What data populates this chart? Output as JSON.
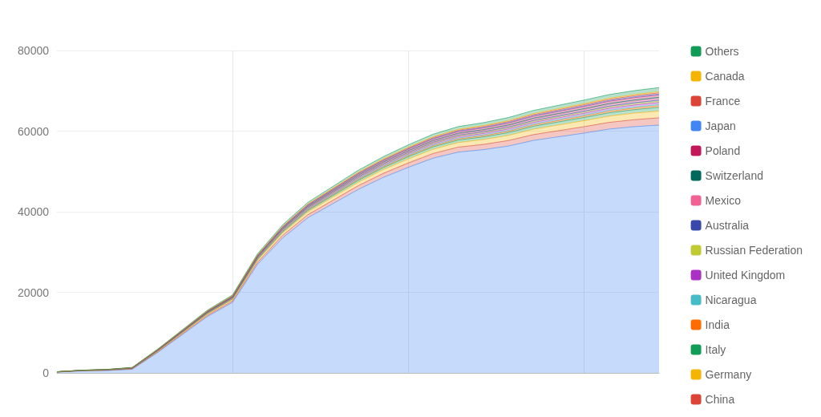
{
  "chart_data": {
    "type": "area",
    "stacked": true,
    "categories": [
      null,
      null,
      null,
      null,
      null,
      null,
      null,
      null,
      null,
      null,
      null,
      null,
      null,
      null,
      null,
      null,
      null,
      null,
      null,
      null,
      null,
      null,
      null,
      null,
      null
    ],
    "ylim": [
      0,
      80000
    ],
    "yticks": [
      0,
      20000,
      40000,
      60000,
      80000
    ],
    "grid": true,
    "legend": "right",
    "tick_labels": "y",
    "series": [
      {
        "color": "#4285f4",
        "values": [
          200,
          500,
          600,
          900,
          5000,
          9500,
          14000,
          17500,
          27000,
          33500,
          38500,
          42000,
          45500,
          48500,
          51000,
          53300,
          54800,
          55400,
          56300,
          57700,
          58600,
          59500,
          60500,
          61100,
          61500
        ]
      },
      {
        "name": "China",
        "color": "#db4437",
        "values": [
          18,
          36,
          54,
          90,
          162,
          234,
          306,
          360,
          504,
          630,
          738,
          828,
          918,
          990,
          1080,
          1152,
          1224,
          1296,
          1368,
          1440,
          1512,
          1584,
          1656,
          1728,
          1800
        ]
      },
      {
        "name": "Germany",
        "color": "#f4b400",
        "values": [
          17,
          34,
          51,
          85,
          153,
          221,
          289,
          340,
          476,
          595,
          697,
          782,
          867,
          935,
          1020,
          1088,
          1156,
          1224,
          1292,
          1360,
          1428,
          1496,
          1564,
          1632,
          1700
        ]
      },
      {
        "name": "Italy",
        "color": "#0f9d58",
        "values": [
          9,
          18,
          27,
          45,
          81,
          117,
          153,
          180,
          252,
          315,
          369,
          414,
          459,
          495,
          540,
          576,
          612,
          648,
          684,
          720,
          756,
          792,
          828,
          864,
          900
        ]
      },
      {
        "name": "India",
        "color": "#ff6d00",
        "values": [
          4,
          8,
          12,
          20,
          36,
          52,
          68,
          80,
          112,
          140,
          164,
          184,
          204,
          220,
          240,
          256,
          272,
          288,
          304,
          320,
          336,
          352,
          368,
          384,
          400
        ]
      },
      {
        "name": "Nicaragua",
        "color": "#46bdc6",
        "values": [
          3,
          6,
          9,
          15,
          27,
          39,
          51,
          60,
          84,
          105,
          123,
          138,
          153,
          165,
          180,
          192,
          204,
          216,
          228,
          240,
          252,
          264,
          276,
          288,
          300
        ]
      },
      {
        "name": "United Kingdom",
        "color": "#ab30c4",
        "values": [
          5,
          10,
          15,
          25,
          45,
          65,
          85,
          100,
          140,
          175,
          205,
          230,
          255,
          275,
          300,
          320,
          340,
          360,
          380,
          400,
          420,
          440,
          460,
          480,
          500
        ]
      },
      {
        "name": "Russian Federation",
        "color": "#c0ca33",
        "values": [
          3,
          6,
          9,
          15,
          27,
          39,
          51,
          60,
          84,
          105,
          123,
          138,
          153,
          165,
          180,
          192,
          204,
          216,
          228,
          240,
          252,
          264,
          276,
          288,
          300
        ]
      },
      {
        "name": "Australia",
        "color": "#3949ab",
        "values": [
          3,
          6,
          9,
          15,
          27,
          39,
          51,
          60,
          84,
          105,
          123,
          138,
          153,
          165,
          180,
          192,
          204,
          216,
          228,
          240,
          252,
          264,
          276,
          288,
          300
        ]
      },
      {
        "name": "Mexico",
        "color": "#f06292",
        "values": [
          4,
          8,
          12,
          20,
          36,
          52,
          68,
          80,
          112,
          140,
          164,
          184,
          204,
          220,
          240,
          256,
          272,
          288,
          304,
          320,
          336,
          352,
          368,
          384,
          400
        ]
      },
      {
        "name": "Switzerland",
        "color": "#00695c",
        "values": [
          3,
          6,
          9,
          15,
          27,
          39,
          51,
          60,
          84,
          105,
          123,
          138,
          153,
          165,
          180,
          192,
          204,
          216,
          228,
          240,
          252,
          264,
          276,
          288,
          300
        ]
      },
      {
        "name": "Poland",
        "color": "#c2185b",
        "values": [
          6,
          12,
          18,
          30,
          54,
          78,
          102,
          120,
          168,
          210,
          246,
          276,
          306,
          330,
          360,
          384,
          408,
          432,
          456,
          480,
          504,
          528,
          552,
          576,
          600
        ]
      },
      {
        "name": "Japan",
        "color": "#4285f4",
        "values": [
          2,
          4,
          6,
          10,
          18,
          26,
          34,
          40,
          56,
          70,
          82,
          92,
          102,
          110,
          120,
          128,
          136,
          144,
          152,
          160,
          168,
          176,
          184,
          192,
          200
        ]
      },
      {
        "name": "France",
        "color": "#db4437",
        "values": [
          3,
          6,
          9,
          15,
          27,
          39,
          51,
          60,
          84,
          105,
          123,
          138,
          153,
          165,
          180,
          192,
          204,
          216,
          228,
          240,
          252,
          264,
          276,
          288,
          300
        ]
      },
      {
        "name": "Canada",
        "color": "#f4b400",
        "values": [
          3,
          6,
          9,
          15,
          27,
          39,
          51,
          60,
          84,
          105,
          123,
          138,
          153,
          165,
          180,
          192,
          204,
          216,
          228,
          240,
          252,
          264,
          276,
          288,
          300
        ]
      },
      {
        "name": "Others",
        "color": "#0f9d58",
        "values": [
          10,
          20,
          30,
          50,
          90,
          130,
          170,
          200,
          280,
          350,
          410,
          460,
          510,
          550,
          600,
          640,
          680,
          720,
          760,
          800,
          840,
          880,
          920,
          960,
          1000
        ]
      }
    ]
  }
}
